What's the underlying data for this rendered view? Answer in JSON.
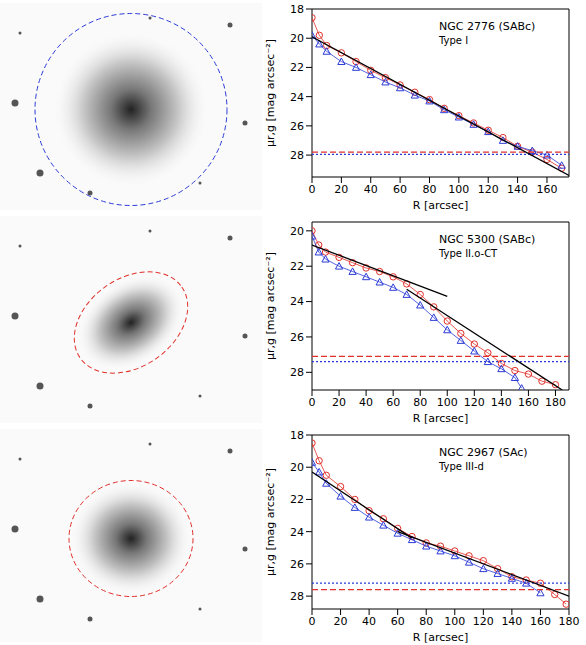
{
  "chart_data": [
    {
      "type": "line",
      "title": "NGC 2776 (SABc)",
      "subtitle": "Type I",
      "x_label": "R [arcsec]",
      "y_label": "μr,g [mag arcsec⁻²]",
      "xlim": [
        0,
        175
      ],
      "xticks": [
        0,
        20,
        40,
        60,
        80,
        100,
        120,
        140,
        160
      ],
      "ylim": [
        29.5,
        18
      ],
      "yticks": [
        18,
        20,
        22,
        24,
        26,
        28
      ],
      "series": [
        {
          "color": "#e0302a",
          "marker": "circle",
          "line_style": "solid",
          "x": [
            0,
            5,
            10,
            20,
            30,
            40,
            50,
            60,
            70,
            80,
            90,
            100,
            110,
            120,
            130,
            140,
            150,
            160,
            170
          ],
          "values": [
            18.6,
            19.8,
            20.5,
            21.0,
            21.6,
            22.2,
            22.7,
            23.2,
            23.7,
            24.2,
            24.8,
            25.3,
            25.8,
            26.3,
            26.8,
            27.4,
            27.8,
            28.3,
            28.9
          ]
        },
        {
          "color": "#2b3bd6",
          "marker": "triangle",
          "line_style": "solid",
          "x": [
            0,
            5,
            10,
            20,
            30,
            40,
            50,
            60,
            70,
            80,
            90,
            100,
            110,
            120,
            130,
            140,
            150,
            160,
            170
          ],
          "values": [
            19.8,
            20.4,
            20.9,
            21.6,
            22.0,
            22.5,
            23.0,
            23.4,
            23.9,
            24.3,
            24.9,
            25.4,
            25.9,
            26.4,
            27.0,
            27.4,
            27.7,
            28.0,
            28.7
          ]
        },
        {
          "color": "#e0302a",
          "marker": "none",
          "line_style": "dashed",
          "x": [
            0,
            175
          ],
          "values": [
            27.8,
            27.8
          ]
        },
        {
          "color": "#2b3bd6",
          "marker": "none",
          "line_style": "dotted",
          "x": [
            0,
            175
          ],
          "values": [
            27.95,
            27.95
          ]
        },
        {
          "color": "#000000",
          "marker": "none",
          "line_style": "solid",
          "x": [
            0,
            175
          ],
          "values": [
            19.9,
            29.4
          ]
        }
      ]
    },
    {
      "type": "line",
      "title": "NGC 5300 (SABc)",
      "subtitle": "Type II.o-CT",
      "x_label": "R [arcsec]",
      "y_label": "μr,g [mag arcsec⁻²]",
      "xlim": [
        0,
        190
      ],
      "xticks": [
        0,
        20,
        40,
        60,
        80,
        100,
        120,
        140,
        160,
        180
      ],
      "ylim": [
        29,
        19.5
      ],
      "yticks": [
        20,
        22,
        24,
        26,
        28
      ],
      "series": [
        {
          "color": "#e0302a",
          "marker": "circle",
          "line_style": "solid",
          "x": [
            0,
            5,
            10,
            20,
            30,
            40,
            50,
            60,
            70,
            80,
            90,
            100,
            110,
            120,
            130,
            140,
            150,
            160,
            170,
            180
          ],
          "values": [
            20.0,
            20.8,
            21.2,
            21.5,
            21.8,
            22.1,
            22.3,
            22.6,
            23.0,
            23.6,
            24.3,
            25.1,
            25.8,
            26.4,
            26.9,
            27.5,
            27.9,
            28.1,
            28.5,
            28.7
          ]
        },
        {
          "color": "#2b3bd6",
          "marker": "triangle",
          "line_style": "solid",
          "x": [
            0,
            5,
            10,
            20,
            30,
            40,
            50,
            60,
            70,
            80,
            90,
            100,
            110,
            120,
            130,
            140,
            150,
            155
          ],
          "values": [
            20.3,
            21.2,
            21.6,
            22.0,
            22.3,
            22.6,
            22.9,
            23.2,
            23.6,
            24.2,
            24.9,
            25.6,
            26.2,
            26.8,
            27.4,
            27.8,
            28.3,
            28.9
          ]
        },
        {
          "color": "#e0302a",
          "marker": "none",
          "line_style": "dashed",
          "x": [
            0,
            190
          ],
          "values": [
            27.1,
            27.1
          ]
        },
        {
          "color": "#2b3bd6",
          "marker": "none",
          "line_style": "dotted",
          "x": [
            0,
            190
          ],
          "values": [
            27.4,
            27.4
          ]
        },
        {
          "color": "#000000",
          "marker": "none",
          "line_style": "solid",
          "x": [
            0,
            100
          ],
          "values": [
            20.8,
            23.7
          ]
        },
        {
          "color": "#000000",
          "marker": "none",
          "line_style": "solid",
          "x": [
            70,
            185
          ],
          "values": [
            23.3,
            29.0
          ]
        }
      ]
    },
    {
      "type": "line",
      "title": "NGC 2967 (SAc)",
      "subtitle": "Type III-d",
      "x_label": "R [arcsec]",
      "y_label": "μr,g [mag arcsec⁻²]",
      "xlim": [
        0,
        180
      ],
      "xticks": [
        0,
        20,
        40,
        60,
        80,
        100,
        120,
        140,
        160,
        180
      ],
      "ylim": [
        28.8,
        18
      ],
      "yticks": [
        18,
        20,
        22,
        24,
        26,
        28
      ],
      "series": [
        {
          "color": "#e0302a",
          "marker": "circle",
          "line_style": "solid",
          "x": [
            0,
            5,
            10,
            20,
            30,
            40,
            50,
            60,
            70,
            80,
            90,
            100,
            110,
            120,
            130,
            140,
            150,
            160,
            170,
            178
          ],
          "values": [
            18.5,
            19.6,
            20.5,
            21.2,
            22.0,
            22.7,
            23.2,
            23.8,
            24.3,
            24.7,
            24.9,
            25.2,
            25.5,
            25.8,
            26.3,
            26.8,
            27.0,
            27.2,
            27.9,
            28.5
          ]
        },
        {
          "color": "#2b3bd6",
          "marker": "triangle",
          "line_style": "solid",
          "x": [
            0,
            5,
            10,
            20,
            30,
            40,
            50,
            60,
            70,
            80,
            90,
            100,
            110,
            120,
            130,
            140,
            150,
            160
          ],
          "values": [
            19.7,
            20.3,
            21.0,
            21.8,
            22.5,
            23.1,
            23.6,
            24.1,
            24.5,
            24.9,
            25.2,
            25.5,
            25.9,
            26.3,
            26.6,
            26.9,
            27.2,
            27.8
          ]
        },
        {
          "color": "#e0302a",
          "marker": "none",
          "line_style": "dashed",
          "x": [
            0,
            180
          ],
          "values": [
            27.6,
            27.6
          ]
        },
        {
          "color": "#2b3bd6",
          "marker": "none",
          "line_style": "dotted",
          "x": [
            0,
            180
          ],
          "values": [
            27.2,
            27.2
          ]
        },
        {
          "color": "#000000",
          "marker": "none",
          "line_style": "solid",
          "x": [
            0,
            70
          ],
          "values": [
            20.3,
            24.4
          ]
        },
        {
          "color": "#000000",
          "marker": "none",
          "line_style": "solid",
          "x": [
            60,
            180
          ],
          "values": [
            24.0,
            28.0
          ]
        }
      ]
    }
  ]
}
